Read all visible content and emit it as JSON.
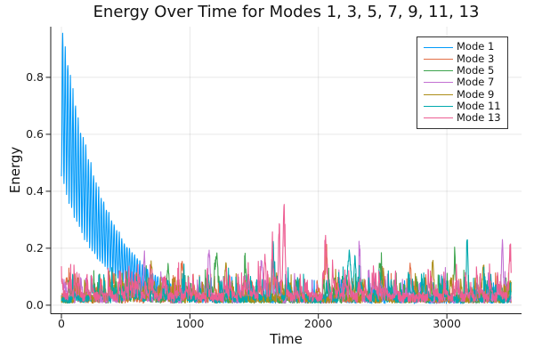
{
  "chart_data": {
    "type": "line",
    "title": "Energy Over Time for Modes 1, 3, 5, 7, 9, 11, 13",
    "xlabel": "Time",
    "ylabel": "Energy",
    "xlim": [
      -83,
      3581
    ],
    "ylim": [
      -0.03,
      0.978
    ],
    "x_data_range": [
      0,
      3500
    ],
    "xticks": [
      {
        "value": 0,
        "label": "0"
      },
      {
        "value": 1000,
        "label": "1000"
      },
      {
        "value": 2000,
        "label": "2000"
      },
      {
        "value": 3000,
        "label": "3000"
      }
    ],
    "yticks": [
      {
        "value": 0.0,
        "label": "0.0"
      },
      {
        "value": 0.2,
        "label": "0.2"
      },
      {
        "value": 0.4,
        "label": "0.4"
      },
      {
        "value": 0.6,
        "label": "0.6"
      },
      {
        "value": 0.8,
        "label": "0.8"
      }
    ],
    "grid": true,
    "grid_color": "rgba(0,0,0,0.09)",
    "axis_color": "#1a1a1a",
    "background": "#ffffff",
    "legend": {
      "position": "top-right",
      "border_color": "#333333",
      "background": "#ffffff"
    },
    "description": "Noisy mode-energy time series. Mode 1 oscillates rapidly (period ~20) while decaying from a peak of ~0.95 at t~10 down into the 0-0.2 noise floor by t~600. All other modes fluctuate between 0 and ~0.2, with notable spikes: Mode 13 reaches ~0.40 near t~1730, Mode 11 ~0.27 near t~3160, Mode 7 ~0.23 near t~3430.",
    "series": [
      {
        "name": "Mode 1",
        "color": "#009AFA",
        "model": {
          "kind": "oscillating-decay",
          "peak_start": 0.95,
          "trough_start": 0.45,
          "peak_decay_time": 330,
          "trough_decay_time": 280,
          "period": 20,
          "noise_base": 0.03,
          "noise_burst_height": 0.12,
          "noise_burst_prob": 0.04
        }
      },
      {
        "name": "Mode 3",
        "color": "#E36F47",
        "model": {
          "kind": "noise",
          "base": 0.035,
          "burst_height": 0.13,
          "burst_prob": 0.05,
          "spikes": [
            {
              "t": 55,
              "h": 0.05,
              "w": 35
            },
            {
              "t": 940,
              "h": 0.11,
              "w": 12
            },
            {
              "t": 2060,
              "h": 0.13,
              "w": 12
            },
            {
              "t": 2500,
              "h": 0.11,
              "w": 12
            },
            {
              "t": 2715,
              "h": 0.13,
              "w": 12
            }
          ]
        }
      },
      {
        "name": "Mode 5",
        "color": "#3DA44D",
        "model": {
          "kind": "noise",
          "base": 0.035,
          "burst_height": 0.14,
          "burst_prob": 0.05,
          "spikes": [
            {
              "t": 830,
              "h": 0.13,
              "w": 12
            },
            {
              "t": 1205,
              "h": 0.14,
              "w": 12
            },
            {
              "t": 1430,
              "h": 0.12,
              "w": 12
            },
            {
              "t": 2480,
              "h": 0.12,
              "w": 12
            },
            {
              "t": 3060,
              "h": 0.12,
              "w": 12
            }
          ]
        }
      },
      {
        "name": "Mode 7",
        "color": "#C371D2",
        "model": {
          "kind": "noise",
          "base": 0.035,
          "burst_height": 0.15,
          "burst_prob": 0.05,
          "spikes": [
            {
              "t": 645,
              "h": 0.16,
              "w": 12
            },
            {
              "t": 1150,
              "h": 0.15,
              "w": 12
            },
            {
              "t": 1560,
              "h": 0.13,
              "w": 12
            },
            {
              "t": 2320,
              "h": 0.13,
              "w": 12
            },
            {
              "t": 3432,
              "h": 0.2,
              "w": 10
            }
          ]
        }
      },
      {
        "name": "Mode 9",
        "color": "#AC8D18",
        "model": {
          "kind": "noise",
          "base": 0.035,
          "burst_height": 0.14,
          "burst_prob": 0.05,
          "spikes": [
            {
              "t": 700,
              "h": 0.13,
              "w": 12
            },
            {
              "t": 1280,
              "h": 0.13,
              "w": 12
            },
            {
              "t": 2890,
              "h": 0.14,
              "w": 12
            },
            {
              "t": 3285,
              "h": 0.13,
              "w": 12
            }
          ]
        }
      },
      {
        "name": "Mode 11",
        "color": "#00A9AD",
        "model": {
          "kind": "noise",
          "base": 0.035,
          "burst_height": 0.15,
          "burst_prob": 0.05,
          "spikes": [
            {
              "t": 1648,
              "h": 0.22,
              "w": 9
            },
            {
              "t": 2240,
              "h": 0.17,
              "w": 20
            },
            {
              "t": 2285,
              "h": 0.15,
              "w": 12
            },
            {
              "t": 3158,
              "h": 0.24,
              "w": 8
            }
          ]
        }
      },
      {
        "name": "Mode 13",
        "color": "#ED5D92",
        "model": {
          "kind": "noise",
          "base": 0.045,
          "burst_height": 0.17,
          "burst_prob": 0.065,
          "spikes": [
            {
              "t": 1585,
              "h": 0.16,
              "w": 10
            },
            {
              "t": 1642,
              "h": 0.22,
              "w": 8
            },
            {
              "t": 1695,
              "h": 0.29,
              "w": 8
            },
            {
              "t": 1732,
              "h": 0.36,
              "w": 9
            },
            {
              "t": 2055,
              "h": 0.15,
              "w": 12
            },
            {
              "t": 3490,
              "h": 0.18,
              "w": 8
            }
          ]
        }
      }
    ]
  }
}
